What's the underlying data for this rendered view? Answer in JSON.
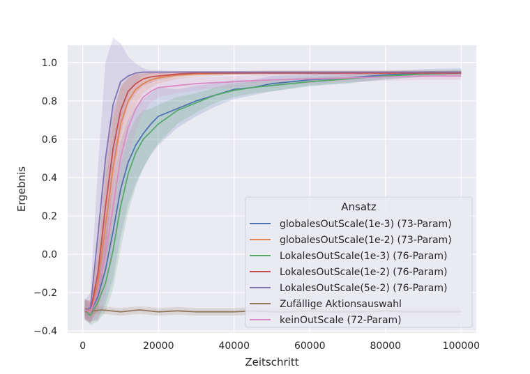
{
  "chart_data": {
    "type": "line",
    "title": "",
    "xlabel": "Zeitschritt",
    "ylabel": "Ergebnis",
    "xlim": [
      -4000,
      104000
    ],
    "ylim": [
      -0.41,
      1.09
    ],
    "xticks": [
      0,
      20000,
      40000,
      60000,
      80000,
      100000
    ],
    "yticks": [
      -0.4,
      -0.2,
      0.0,
      0.2,
      0.4,
      0.6,
      0.8,
      1.0
    ],
    "xtick_labels": [
      "0",
      "20000",
      "40000",
      "60000",
      "80000",
      "100000"
    ],
    "ytick_labels": [
      "−0.4",
      "−0.2",
      "0.0",
      "0.2",
      "0.4",
      "0.6",
      "0.8",
      "1.0"
    ],
    "grid": true,
    "background": "#eaeaf2",
    "legend": {
      "title": "Ansatz",
      "placement": "lower-right"
    },
    "series": [
      {
        "name": "globalesOutScale(1e-3) (73-Param)",
        "color": "#4c72b0",
        "x": [
          500,
          2000,
          4000,
          6000,
          8000,
          10000,
          12000,
          14000,
          16000,
          18000,
          20000,
          25000,
          30000,
          35000,
          40000,
          45000,
          50000,
          60000,
          70000,
          80000,
          90000,
          100000
        ],
        "y": [
          -0.28,
          -0.3,
          -0.22,
          -0.08,
          0.12,
          0.34,
          0.48,
          0.57,
          0.63,
          0.68,
          0.72,
          0.76,
          0.8,
          0.83,
          0.86,
          0.87,
          0.89,
          0.91,
          0.92,
          0.935,
          0.945,
          0.95
        ],
        "band": [
          0.05,
          0.05,
          0.12,
          0.18,
          0.25,
          0.25,
          0.22,
          0.2,
          0.18,
          0.16,
          0.15,
          0.1,
          0.08,
          0.06,
          0.05,
          0.04,
          0.04,
          0.03,
          0.03,
          0.02,
          0.02,
          0.02
        ]
      },
      {
        "name": "globalesOutScale(1e-2) (73-Param)",
        "color": "#dd8452",
        "x": [
          500,
          2000,
          4000,
          6000,
          8000,
          10000,
          12000,
          14000,
          16000,
          18000,
          20000,
          25000,
          30000,
          40000,
          50000,
          60000,
          70000,
          80000,
          90000,
          100000
        ],
        "y": [
          -0.28,
          -0.3,
          -0.15,
          0.15,
          0.45,
          0.68,
          0.8,
          0.86,
          0.89,
          0.91,
          0.92,
          0.935,
          0.94,
          0.945,
          0.95,
          0.95,
          0.95,
          0.95,
          0.95,
          0.95
        ],
        "band": [
          0.05,
          0.05,
          0.15,
          0.25,
          0.25,
          0.2,
          0.12,
          0.08,
          0.05,
          0.04,
          0.03,
          0.02,
          0.015,
          0.01,
          0.01,
          0.01,
          0.01,
          0.01,
          0.01,
          0.01
        ]
      },
      {
        "name": "LokalesOutScale(1e-3) (76-Param)",
        "color": "#55a868",
        "x": [
          500,
          2000,
          4000,
          6000,
          8000,
          10000,
          12000,
          14000,
          16000,
          18000,
          20000,
          25000,
          30000,
          35000,
          40000,
          45000,
          50000,
          60000,
          70000,
          80000,
          90000,
          100000
        ],
        "y": [
          -0.29,
          -0.32,
          -0.25,
          -0.15,
          0.02,
          0.25,
          0.42,
          0.53,
          0.6,
          0.64,
          0.68,
          0.75,
          0.79,
          0.83,
          0.855,
          0.87,
          0.88,
          0.9,
          0.915,
          0.93,
          0.94,
          0.945
        ],
        "band": [
          0.05,
          0.05,
          0.1,
          0.15,
          0.2,
          0.22,
          0.2,
          0.18,
          0.15,
          0.12,
          0.1,
          0.07,
          0.05,
          0.04,
          0.035,
          0.03,
          0.03,
          0.025,
          0.02,
          0.02,
          0.015,
          0.015
        ]
      },
      {
        "name": "LokalesOutScale(1e-2) (76-Param)",
        "color": "#c44e52",
        "x": [
          500,
          2000,
          4000,
          6000,
          8000,
          10000,
          12000,
          14000,
          16000,
          18000,
          20000,
          25000,
          30000,
          40000,
          50000,
          60000,
          70000,
          80000,
          90000,
          100000
        ],
        "y": [
          -0.29,
          -0.3,
          -0.1,
          0.25,
          0.55,
          0.75,
          0.85,
          0.89,
          0.915,
          0.925,
          0.93,
          0.94,
          0.945,
          0.945,
          0.945,
          0.945,
          0.945,
          0.945,
          0.945,
          0.945
        ],
        "band": [
          0.05,
          0.06,
          0.18,
          0.25,
          0.2,
          0.12,
          0.07,
          0.05,
          0.035,
          0.03,
          0.02,
          0.015,
          0.01,
          0.01,
          0.01,
          0.01,
          0.01,
          0.01,
          0.01,
          0.01
        ]
      },
      {
        "name": "LokalesOutScale(5e-2) (76-Param)",
        "color": "#8172b3",
        "x": [
          500,
          2000,
          4000,
          6000,
          8000,
          10000,
          12000,
          14000,
          16000,
          18000,
          20000,
          25000,
          30000,
          40000,
          50000,
          60000,
          70000,
          80000,
          90000,
          100000
        ],
        "y": [
          -0.29,
          -0.28,
          0.1,
          0.5,
          0.78,
          0.9,
          0.93,
          0.945,
          0.95,
          0.95,
          0.95,
          0.95,
          0.95,
          0.95,
          0.95,
          0.95,
          0.95,
          0.95,
          0.95,
          0.95
        ],
        "band": [
          0.05,
          0.08,
          0.35,
          0.5,
          0.35,
          0.2,
          0.1,
          0.05,
          0.02,
          0.01,
          0.01,
          0.005,
          0.005,
          0.005,
          0.005,
          0.005,
          0.005,
          0.005,
          0.005,
          0.005
        ]
      },
      {
        "name": "Zufällige Aktionsauswahl",
        "color": "#937860",
        "x": [
          500,
          5000,
          10000,
          15000,
          20000,
          25000,
          30000,
          35000,
          40000,
          45000,
          50000,
          55000,
          60000,
          65000,
          70000,
          75000,
          80000,
          85000,
          90000,
          95000,
          100000
        ],
        "y": [
          -0.3,
          -0.29,
          -0.3,
          -0.29,
          -0.3,
          -0.295,
          -0.3,
          -0.3,
          -0.3,
          -0.295,
          -0.3,
          -0.3,
          -0.295,
          -0.3,
          -0.3,
          -0.3,
          -0.295,
          -0.3,
          -0.3,
          -0.3,
          -0.3
        ],
        "band": [
          0.02,
          0.02,
          0.02,
          0.02,
          0.02,
          0.02,
          0.02,
          0.02,
          0.02,
          0.02,
          0.02,
          0.02,
          0.02,
          0.02,
          0.02,
          0.02,
          0.02,
          0.02,
          0.02,
          0.02,
          0.02
        ]
      },
      {
        "name": "keinOutScale (72-Param)",
        "color": "#da8bc3",
        "x": [
          500,
          2000,
          4000,
          6000,
          8000,
          10000,
          12000,
          14000,
          16000,
          18000,
          20000,
          25000,
          30000,
          35000,
          40000,
          50000,
          60000,
          70000,
          80000,
          90000,
          100000
        ],
        "y": [
          -0.29,
          -0.3,
          -0.2,
          0.0,
          0.25,
          0.5,
          0.66,
          0.76,
          0.82,
          0.85,
          0.87,
          0.88,
          0.89,
          0.895,
          0.9,
          0.91,
          0.915,
          0.92,
          0.925,
          0.93,
          0.93
        ],
        "band": [
          0.05,
          0.05,
          0.15,
          0.22,
          0.25,
          0.22,
          0.17,
          0.12,
          0.08,
          0.06,
          0.05,
          0.04,
          0.035,
          0.03,
          0.03,
          0.025,
          0.025,
          0.02,
          0.02,
          0.02,
          0.02
        ]
      }
    ]
  }
}
